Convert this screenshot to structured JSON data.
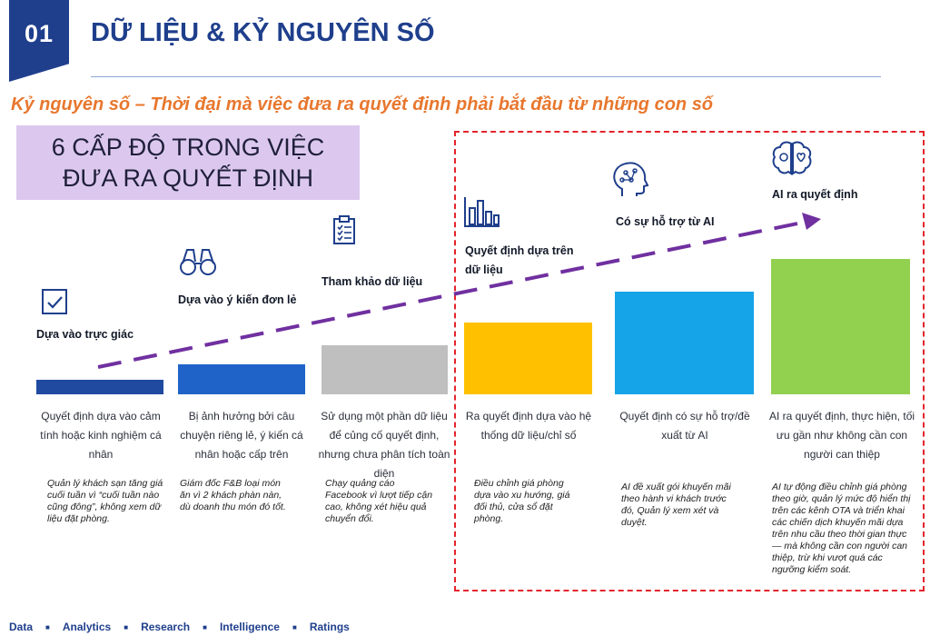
{
  "header": {
    "number": "01",
    "title": "DỮ LIỆU & KỶ NGUYÊN SỐ",
    "subtitle": "Kỷ nguyên số – Thời đại mà việc đưa ra quyết định phải bắt đầu từ những con số"
  },
  "levels_heading": {
    "line1": "6 CẤP ĐỘ TRONG VIỆC",
    "line2": "ĐƯA RA QUYẾT ĐỊNH"
  },
  "levels": [
    {
      "icon": "checkbox-icon",
      "title": "Dựa vào trực giác",
      "bar_color": "#1f4aa0",
      "desc": "Quyết định dựa vào cảm tính hoặc kinh nghiệm cá nhân",
      "example": "Quản lý khách sạn tăng giá cuối tuần vì “cuối tuần nào cũng đông”, không xem dữ liệu đặt phòng."
    },
    {
      "icon": "binoculars-icon",
      "title": "Dựa vào ý kiến đơn lẻ",
      "bar_color": "#1f63c9",
      "desc": "Bị ảnh hưởng bởi câu chuyện riêng lẻ, ý kiến cá nhân hoặc cấp trên",
      "example": "Giám đốc F&B loại món ăn vì 2 khách phàn nàn, dù doanh thu món đó tốt."
    },
    {
      "icon": "clipboard-icon",
      "title": "Tham khảo dữ liệu",
      "bar_color": "#bfbfbf",
      "desc": "Sử dụng một phần dữ liệu để củng cố quyết định, nhưng chưa phân tích toàn diện",
      "example": "Chạy quảng cáo Facebook vì lượt tiếp cận cao, không xét hiệu quả chuyển đổi."
    },
    {
      "icon": "bar-chart-icon",
      "title_line1": "Quyết định dựa trên",
      "title_line2": "dữ liệu",
      "bar_color": "#ffc000",
      "desc": "Ra quyết định dựa vào hệ thống dữ liệu/chỉ số",
      "example": "Điều chỉnh giá phòng dựa vào xu hướng, giá đối thủ, cửa sổ đặt phòng."
    },
    {
      "icon": "ai-head-icon",
      "title": "Có sự hỗ trợ từ AI",
      "bar_color": "#16a4e8",
      "desc": "Quyết định có sự hỗ trợ/đề xuất từ AI",
      "example": "AI đề xuất gói khuyến mãi theo hành vi khách trước đó, Quản lý xem xét và duyệt."
    },
    {
      "icon": "brain-icon",
      "title": "AI ra quyết định",
      "bar_color": "#92d050",
      "desc": "AI ra quyết định, thực hiện, tối ưu gần như không cần con người can thiệp",
      "example": "AI tự động điều chỉnh giá phòng theo giờ, quản lý mức độ hiển thị trên các kênh OTA và triển khai các chiến dịch khuyến mãi dựa trên nhu cầu theo thời gian thực — mà không cần con người can thiệp, trừ khi vượt quá các ngưỡng kiểm soát."
    }
  ],
  "colors": {
    "brand": "#1f3f8c",
    "accent": "#e8772e",
    "trend_arrow": "#7030a0",
    "frame": "#e3242b"
  },
  "footer": {
    "items": [
      "Data",
      "Analytics",
      "Research",
      "Intelligence",
      "Ratings"
    ]
  }
}
